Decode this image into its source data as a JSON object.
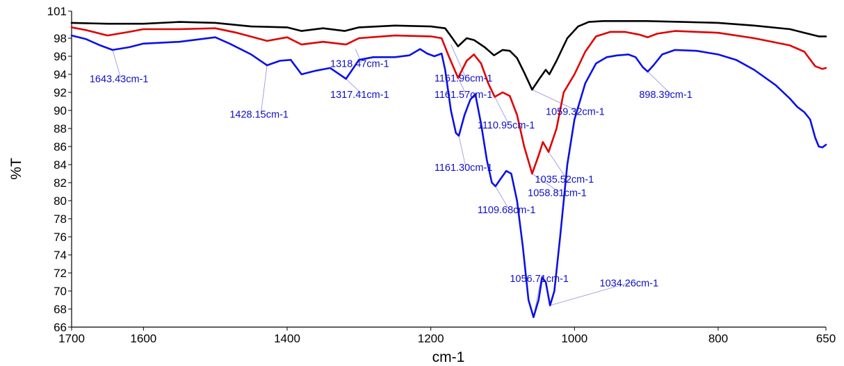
{
  "chart_data": {
    "type": "line",
    "xlabel": "cm-1",
    "ylabel": "%T",
    "xlim": [
      1700,
      650
    ],
    "ylim": [
      66,
      101
    ],
    "x_reversed": true,
    "grid": false,
    "legend": "none",
    "x_ticks": [
      1700,
      1600,
      1400,
      1200,
      1000,
      800,
      650
    ],
    "y_ticks": [
      66,
      68,
      70,
      72,
      74,
      76,
      78,
      80,
      82,
      84,
      86,
      88,
      90,
      92,
      94,
      96,
      98,
      101
    ],
    "series": [
      {
        "color": "#000000",
        "points": [
          [
            1700,
            99.7
          ],
          [
            1650,
            99.6
          ],
          [
            1600,
            99.6
          ],
          [
            1550,
            99.8
          ],
          [
            1500,
            99.7
          ],
          [
            1450,
            99.3
          ],
          [
            1400,
            99.2
          ],
          [
            1380,
            98.8
          ],
          [
            1350,
            99.1
          ],
          [
            1320,
            98.8
          ],
          [
            1300,
            99.2
          ],
          [
            1250,
            99.4
          ],
          [
            1200,
            99.3
          ],
          [
            1180,
            99.1
          ],
          [
            1170,
            98.0
          ],
          [
            1162,
            97.1
          ],
          [
            1150,
            98.0
          ],
          [
            1140,
            97.8
          ],
          [
            1125,
            97.0
          ],
          [
            1112,
            96.1
          ],
          [
            1100,
            96.7
          ],
          [
            1090,
            96.6
          ],
          [
            1080,
            95.8
          ],
          [
            1070,
            94.2
          ],
          [
            1059,
            92.3
          ],
          [
            1048,
            93.6
          ],
          [
            1040,
            94.5
          ],
          [
            1035,
            94.0
          ],
          [
            1025,
            95.5
          ],
          [
            1010,
            98.0
          ],
          [
            995,
            99.3
          ],
          [
            980,
            99.8
          ],
          [
            960,
            99.9
          ],
          [
            900,
            99.9
          ],
          [
            850,
            99.8
          ],
          [
            800,
            99.7
          ],
          [
            750,
            99.4
          ],
          [
            700,
            99.0
          ],
          [
            680,
            98.6
          ],
          [
            660,
            98.2
          ],
          [
            650,
            98.2
          ]
        ]
      },
      {
        "color": "#e00000",
        "points": [
          [
            1700,
            99.2
          ],
          [
            1680,
            98.9
          ],
          [
            1650,
            98.3
          ],
          [
            1620,
            98.7
          ],
          [
            1600,
            99.0
          ],
          [
            1550,
            99.0
          ],
          [
            1500,
            99.1
          ],
          [
            1470,
            98.6
          ],
          [
            1428,
            97.7
          ],
          [
            1400,
            98.1
          ],
          [
            1380,
            97.3
          ],
          [
            1350,
            97.6
          ],
          [
            1318,
            97.3
          ],
          [
            1300,
            98.0
          ],
          [
            1250,
            98.3
          ],
          [
            1200,
            98.2
          ],
          [
            1185,
            98.0
          ],
          [
            1175,
            96.0
          ],
          [
            1162,
            93.6
          ],
          [
            1150,
            95.5
          ],
          [
            1140,
            96.2
          ],
          [
            1130,
            95.2
          ],
          [
            1120,
            93.0
          ],
          [
            1111,
            91.5
          ],
          [
            1100,
            92.0
          ],
          [
            1090,
            91.6
          ],
          [
            1080,
            89.5
          ],
          [
            1070,
            86.0
          ],
          [
            1059,
            83.0
          ],
          [
            1050,
            85.0
          ],
          [
            1044,
            86.5
          ],
          [
            1036,
            85.4
          ],
          [
            1025,
            88.0
          ],
          [
            1015,
            92.0
          ],
          [
            1000,
            94.0
          ],
          [
            985,
            96.5
          ],
          [
            970,
            98.2
          ],
          [
            950,
            98.7
          ],
          [
            930,
            98.7
          ],
          [
            910,
            98.4
          ],
          [
            898,
            98.1
          ],
          [
            885,
            98.5
          ],
          [
            860,
            98.8
          ],
          [
            800,
            98.6
          ],
          [
            750,
            98.0
          ],
          [
            700,
            97.2
          ],
          [
            680,
            96.5
          ],
          [
            665,
            94.9
          ],
          [
            655,
            94.6
          ],
          [
            650,
            94.7
          ]
        ]
      },
      {
        "color": "#0a10e8",
        "points": [
          [
            1700,
            98.3
          ],
          [
            1680,
            97.9
          ],
          [
            1660,
            97.2
          ],
          [
            1643,
            96.7
          ],
          [
            1620,
            97.0
          ],
          [
            1600,
            97.4
          ],
          [
            1550,
            97.6
          ],
          [
            1500,
            98.1
          ],
          [
            1480,
            97.4
          ],
          [
            1450,
            96.2
          ],
          [
            1428,
            95.0
          ],
          [
            1410,
            95.5
          ],
          [
            1395,
            95.6
          ],
          [
            1380,
            94.0
          ],
          [
            1360,
            94.4
          ],
          [
            1340,
            94.7
          ],
          [
            1318,
            93.5
          ],
          [
            1300,
            95.6
          ],
          [
            1280,
            95.9
          ],
          [
            1250,
            95.9
          ],
          [
            1230,
            96.1
          ],
          [
            1215,
            96.8
          ],
          [
            1205,
            96.3
          ],
          [
            1195,
            96.0
          ],
          [
            1185,
            96.3
          ],
          [
            1180,
            94.5
          ],
          [
            1172,
            90.0
          ],
          [
            1165,
            87.5
          ],
          [
            1161,
            87.2
          ],
          [
            1153,
            89.5
          ],
          [
            1145,
            91.2
          ],
          [
            1138,
            91.8
          ],
          [
            1130,
            88.5
          ],
          [
            1122,
            84.5
          ],
          [
            1115,
            82.0
          ],
          [
            1110,
            81.6
          ],
          [
            1103,
            82.4
          ],
          [
            1095,
            83.3
          ],
          [
            1088,
            83.0
          ],
          [
            1080,
            80.0
          ],
          [
            1072,
            75.0
          ],
          [
            1064,
            69.0
          ],
          [
            1057,
            67.1
          ],
          [
            1050,
            69.0
          ],
          [
            1045,
            71.5
          ],
          [
            1040,
            71.0
          ],
          [
            1034,
            68.4
          ],
          [
            1028,
            70.0
          ],
          [
            1020,
            76.0
          ],
          [
            1010,
            84.0
          ],
          [
            1000,
            89.0
          ],
          [
            985,
            93.0
          ],
          [
            970,
            95.2
          ],
          [
            955,
            95.9
          ],
          [
            940,
            96.1
          ],
          [
            925,
            96.2
          ],
          [
            915,
            95.9
          ],
          [
            905,
            94.8
          ],
          [
            898,
            94.3
          ],
          [
            890,
            95.0
          ],
          [
            878,
            96.2
          ],
          [
            860,
            96.7
          ],
          [
            830,
            96.6
          ],
          [
            800,
            96.2
          ],
          [
            775,
            95.6
          ],
          [
            750,
            94.5
          ],
          [
            720,
            92.8
          ],
          [
            700,
            91.3
          ],
          [
            690,
            90.4
          ],
          [
            680,
            89.8
          ],
          [
            672,
            89.0
          ],
          [
            665,
            87.0
          ],
          [
            660,
            86.0
          ],
          [
            655,
            85.9
          ],
          [
            650,
            86.2
          ]
        ]
      }
    ],
    "annotations": [
      {
        "text": "1643.43cm-1",
        "peak": [
          1643,
          96.7
        ],
        "label": [
          1675,
          93.1
        ]
      },
      {
        "text": "1428.15cm-1",
        "peak": [
          1428,
          95.0
        ],
        "label": [
          1480,
          89.2
        ]
      },
      {
        "text": "1318.47cm-1",
        "peak": [
          1305,
          96.8
        ],
        "label": [
          1340,
          94.8
        ]
      },
      {
        "text": "1317.41cm-1",
        "peak": [
          1318,
          93.5
        ],
        "label": [
          1340,
          91.4
        ]
      },
      {
        "text": "1161.96cm-1",
        "peak": [
          1172,
          97.3
        ],
        "label": [
          1195,
          93.2
        ]
      },
      {
        "text": "1161.57cm-1",
        "peak": [
          1162,
          93.6
        ],
        "label": [
          1195,
          91.4
        ]
      },
      {
        "text": "1059.32cm-1",
        "peak": [
          1059,
          92.3
        ],
        "label": [
          1040,
          89.5
        ]
      },
      {
        "text": "898.39cm-1",
        "peak": [
          898,
          94.3
        ],
        "label": [
          910,
          91.4
        ]
      },
      {
        "text": "1110.95cm-1",
        "peak": [
          1111,
          91.5
        ],
        "label": [
          1135,
          88.0
        ]
      },
      {
        "text": "1035.52cm-1",
        "peak": [
          1036,
          85.4
        ],
        "label": [
          1055,
          82.0
        ]
      },
      {
        "text": "1161.30cm-1",
        "peak": [
          1161,
          87.2
        ],
        "label": [
          1195,
          83.3
        ]
      },
      {
        "text": "1058.81cm-1",
        "peak": [
          1059,
          83.0
        ],
        "label": [
          1065,
          80.5
        ]
      },
      {
        "text": "1109.68cm-1",
        "peak": [
          1110,
          81.6
        ],
        "label": [
          1135,
          78.6
        ]
      },
      {
        "text": "1056.71cm-1",
        "peak": [
          1057,
          67.1
        ],
        "label": [
          1090,
          71.0
        ]
      },
      {
        "text": "1034.26cm-1",
        "peak": [
          1034,
          68.4
        ],
        "label": [
          965,
          70.5
        ]
      }
    ]
  }
}
